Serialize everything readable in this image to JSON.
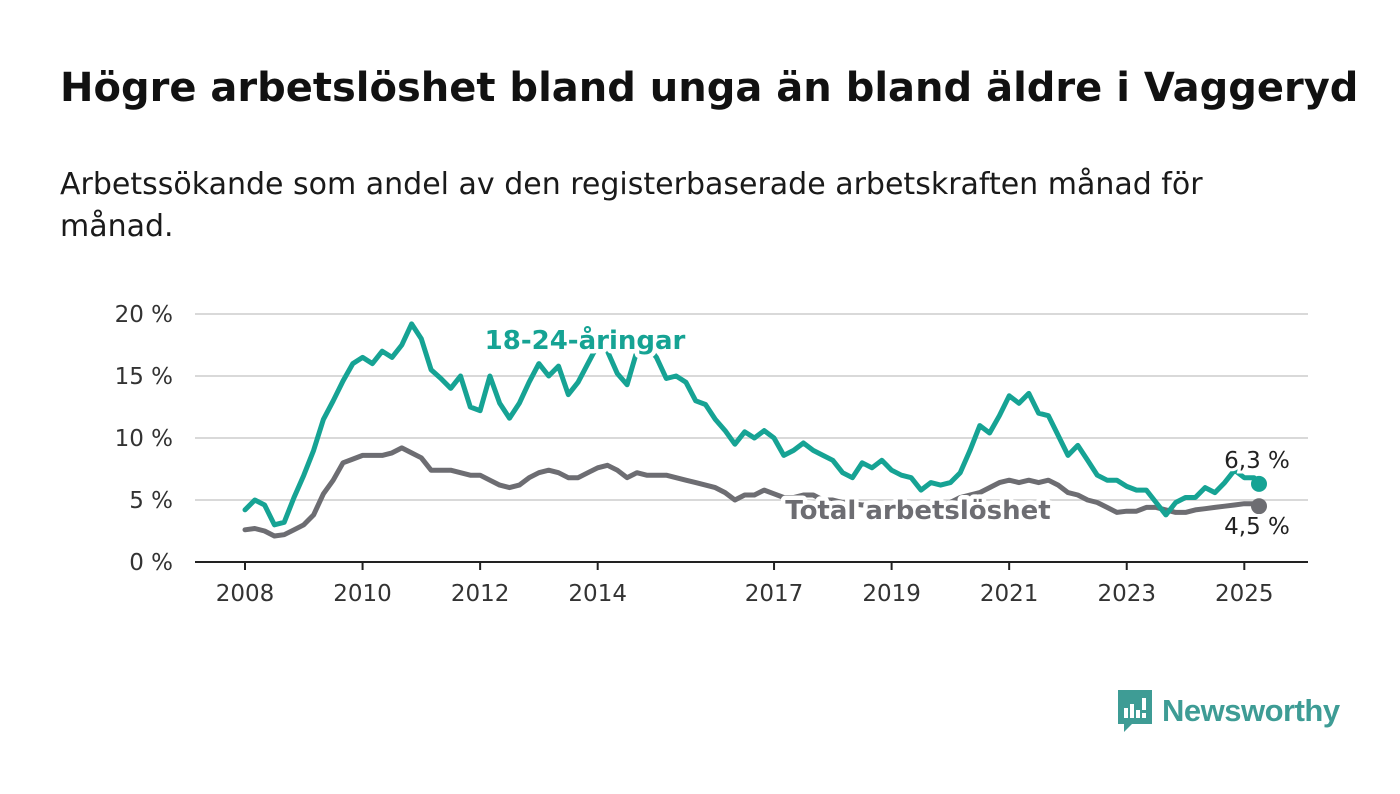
{
  "title": "Högre arbetslöshet bland unga än bland äldre i Vaggeryd",
  "subtitle": "Arbetssökande som andel av den registerbaserade arbetskraften månad för månad.",
  "brand": {
    "name": "Newsworthy",
    "color": "#3e9c95"
  },
  "colors": {
    "youth": "#16a394",
    "total": "#6d6d72",
    "grid": "#d9d9d9",
    "axis": "#222222"
  },
  "chart_data": {
    "type": "line",
    "title": "Högre arbetslöshet bland unga än bland äldre i Vaggeryd",
    "xlabel": "",
    "ylabel": "",
    "x_tick_labels": [
      "2008",
      "2010",
      "2012",
      "2014",
      "2017",
      "2019",
      "2021",
      "2023",
      "2025"
    ],
    "x_tick_years": [
      2008,
      2010,
      2012,
      2014,
      2017,
      2019,
      2021,
      2023,
      2025
    ],
    "y_tick_labels": [
      "0 %",
      "5 %",
      "10 %",
      "15 %",
      "20 %"
    ],
    "y_ticks": [
      0,
      5,
      10,
      15,
      20
    ],
    "ylim": [
      0,
      20
    ],
    "xlim": [
      "2008-01",
      "2025-04"
    ],
    "grid": true,
    "legend": "inline labels",
    "series": [
      {
        "name": "18-24-åringar",
        "key": "youth",
        "end_label": "6,3 %",
        "points": [
          [
            "2008-01",
            4.2
          ],
          [
            "2008-03",
            5.0
          ],
          [
            "2008-05",
            4.6
          ],
          [
            "2008-07",
            3.0
          ],
          [
            "2008-09",
            3.2
          ],
          [
            "2008-11",
            5.2
          ],
          [
            "2009-01",
            7.0
          ],
          [
            "2009-03",
            9.0
          ],
          [
            "2009-05",
            11.5
          ],
          [
            "2009-07",
            13.0
          ],
          [
            "2009-09",
            14.6
          ],
          [
            "2009-11",
            16.0
          ],
          [
            "2010-01",
            16.5
          ],
          [
            "2010-03",
            16.0
          ],
          [
            "2010-05",
            17.0
          ],
          [
            "2010-07",
            16.5
          ],
          [
            "2010-09",
            17.5
          ],
          [
            "2010-11",
            19.2
          ],
          [
            "2011-01",
            18.0
          ],
          [
            "2011-03",
            15.5
          ],
          [
            "2011-05",
            14.8
          ],
          [
            "2011-07",
            14.0
          ],
          [
            "2011-09",
            15.0
          ],
          [
            "2011-11",
            12.5
          ],
          [
            "2012-01",
            12.2
          ],
          [
            "2012-03",
            15.0
          ],
          [
            "2012-05",
            12.8
          ],
          [
            "2012-07",
            11.6
          ],
          [
            "2012-09",
            12.8
          ],
          [
            "2012-11",
            14.5
          ],
          [
            "2013-01",
            16.0
          ],
          [
            "2013-03",
            15.0
          ],
          [
            "2013-05",
            15.8
          ],
          [
            "2013-07",
            13.5
          ],
          [
            "2013-09",
            14.5
          ],
          [
            "2013-11",
            16.0
          ],
          [
            "2014-01",
            17.5
          ],
          [
            "2014-03",
            17.0
          ],
          [
            "2014-05",
            15.2
          ],
          [
            "2014-07",
            14.3
          ],
          [
            "2014-09",
            17.0
          ],
          [
            "2014-11",
            17.5
          ],
          [
            "2015-01",
            16.5
          ],
          [
            "2015-03",
            14.8
          ],
          [
            "2015-05",
            15.0
          ],
          [
            "2015-07",
            14.5
          ],
          [
            "2015-09",
            13.0
          ],
          [
            "2015-11",
            12.7
          ],
          [
            "2016-01",
            11.5
          ],
          [
            "2016-03",
            10.6
          ],
          [
            "2016-05",
            9.5
          ],
          [
            "2016-07",
            10.5
          ],
          [
            "2016-09",
            10.0
          ],
          [
            "2016-11",
            10.6
          ],
          [
            "2017-01",
            10.0
          ],
          [
            "2017-03",
            8.6
          ],
          [
            "2017-05",
            9.0
          ],
          [
            "2017-07",
            9.6
          ],
          [
            "2017-09",
            9.0
          ],
          [
            "2017-11",
            8.6
          ],
          [
            "2018-01",
            8.2
          ],
          [
            "2018-03",
            7.2
          ],
          [
            "2018-05",
            6.8
          ],
          [
            "2018-07",
            8.0
          ],
          [
            "2018-09",
            7.6
          ],
          [
            "2018-11",
            8.2
          ],
          [
            "2019-01",
            7.4
          ],
          [
            "2019-03",
            7.0
          ],
          [
            "2019-05",
            6.8
          ],
          [
            "2019-07",
            5.8
          ],
          [
            "2019-09",
            6.4
          ],
          [
            "2019-11",
            6.2
          ],
          [
            "2020-01",
            6.4
          ],
          [
            "2020-03",
            7.2
          ],
          [
            "2020-05",
            9.0
          ],
          [
            "2020-07",
            11.0
          ],
          [
            "2020-09",
            10.4
          ],
          [
            "2020-11",
            11.8
          ],
          [
            "2021-01",
            13.4
          ],
          [
            "2021-03",
            12.8
          ],
          [
            "2021-05",
            13.6
          ],
          [
            "2021-07",
            12.0
          ],
          [
            "2021-09",
            11.8
          ],
          [
            "2021-11",
            10.2
          ],
          [
            "2022-01",
            8.6
          ],
          [
            "2022-03",
            9.4
          ],
          [
            "2022-05",
            8.2
          ],
          [
            "2022-07",
            7.0
          ],
          [
            "2022-09",
            6.6
          ],
          [
            "2022-11",
            6.6
          ],
          [
            "2023-01",
            6.1
          ],
          [
            "2023-03",
            5.8
          ],
          [
            "2023-05",
            5.8
          ],
          [
            "2023-07",
            4.8
          ],
          [
            "2023-09",
            3.8
          ],
          [
            "2023-11",
            4.8
          ],
          [
            "2024-01",
            5.2
          ],
          [
            "2024-03",
            5.2
          ],
          [
            "2024-05",
            6.0
          ],
          [
            "2024-07",
            5.6
          ],
          [
            "2024-09",
            6.4
          ],
          [
            "2024-11",
            7.4
          ],
          [
            "2025-01",
            6.8
          ],
          [
            "2025-03",
            6.8
          ],
          [
            "2025-04",
            6.3
          ]
        ]
      },
      {
        "name": "Total arbetslöshet",
        "key": "total",
        "end_label": "4,5 %",
        "points": [
          [
            "2008-01",
            2.6
          ],
          [
            "2008-03",
            2.7
          ],
          [
            "2008-05",
            2.5
          ],
          [
            "2008-07",
            2.1
          ],
          [
            "2008-09",
            2.2
          ],
          [
            "2008-11",
            2.6
          ],
          [
            "2009-01",
            3.0
          ],
          [
            "2009-03",
            3.8
          ],
          [
            "2009-05",
            5.5
          ],
          [
            "2009-07",
            6.6
          ],
          [
            "2009-09",
            8.0
          ],
          [
            "2009-11",
            8.3
          ],
          [
            "2010-01",
            8.6
          ],
          [
            "2010-03",
            8.6
          ],
          [
            "2010-05",
            8.6
          ],
          [
            "2010-07",
            8.8
          ],
          [
            "2010-09",
            9.2
          ],
          [
            "2010-11",
            8.8
          ],
          [
            "2011-01",
            8.4
          ],
          [
            "2011-03",
            7.4
          ],
          [
            "2011-05",
            7.4
          ],
          [
            "2011-07",
            7.4
          ],
          [
            "2011-09",
            7.2
          ],
          [
            "2011-11",
            7.0
          ],
          [
            "2012-01",
            7.0
          ],
          [
            "2012-03",
            6.6
          ],
          [
            "2012-05",
            6.2
          ],
          [
            "2012-07",
            6.0
          ],
          [
            "2012-09",
            6.2
          ],
          [
            "2012-11",
            6.8
          ],
          [
            "2013-01",
            7.2
          ],
          [
            "2013-03",
            7.4
          ],
          [
            "2013-05",
            7.2
          ],
          [
            "2013-07",
            6.8
          ],
          [
            "2013-09",
            6.8
          ],
          [
            "2013-11",
            7.2
          ],
          [
            "2014-01",
            7.6
          ],
          [
            "2014-03",
            7.8
          ],
          [
            "2014-05",
            7.4
          ],
          [
            "2014-07",
            6.8
          ],
          [
            "2014-09",
            7.2
          ],
          [
            "2014-11",
            7.0
          ],
          [
            "2015-01",
            7.0
          ],
          [
            "2015-03",
            7.0
          ],
          [
            "2015-05",
            6.8
          ],
          [
            "2015-07",
            6.6
          ],
          [
            "2015-09",
            6.4
          ],
          [
            "2015-11",
            6.2
          ],
          [
            "2016-01",
            6.0
          ],
          [
            "2016-03",
            5.6
          ],
          [
            "2016-05",
            5.0
          ],
          [
            "2016-07",
            5.4
          ],
          [
            "2016-09",
            5.4
          ],
          [
            "2016-11",
            5.8
          ],
          [
            "2017-01",
            5.5
          ],
          [
            "2017-03",
            5.2
          ],
          [
            "2017-05",
            5.2
          ],
          [
            "2017-07",
            5.4
          ],
          [
            "2017-09",
            5.4
          ],
          [
            "2017-11",
            5.0
          ],
          [
            "2018-01",
            5.0
          ],
          [
            "2018-03",
            4.8
          ],
          [
            "2018-05",
            4.7
          ],
          [
            "2018-07",
            4.6
          ],
          [
            "2018-09",
            4.6
          ],
          [
            "2018-11",
            4.6
          ],
          [
            "2019-01",
            4.6
          ],
          [
            "2019-03",
            4.5
          ],
          [
            "2019-05",
            4.4
          ],
          [
            "2019-07",
            4.4
          ],
          [
            "2019-09",
            4.5
          ],
          [
            "2019-11",
            4.6
          ],
          [
            "2020-01",
            4.8
          ],
          [
            "2020-03",
            5.2
          ],
          [
            "2020-05",
            5.4
          ],
          [
            "2020-07",
            5.6
          ],
          [
            "2020-09",
            6.0
          ],
          [
            "2020-11",
            6.4
          ],
          [
            "2021-01",
            6.6
          ],
          [
            "2021-03",
            6.4
          ],
          [
            "2021-05",
            6.6
          ],
          [
            "2021-07",
            6.4
          ],
          [
            "2021-09",
            6.6
          ],
          [
            "2021-11",
            6.2
          ],
          [
            "2022-01",
            5.6
          ],
          [
            "2022-03",
            5.4
          ],
          [
            "2022-05",
            5.0
          ],
          [
            "2022-07",
            4.8
          ],
          [
            "2022-09",
            4.4
          ],
          [
            "2022-11",
            4.0
          ],
          [
            "2023-01",
            4.1
          ],
          [
            "2023-03",
            4.1
          ],
          [
            "2023-05",
            4.4
          ],
          [
            "2023-07",
            4.4
          ],
          [
            "2023-09",
            4.2
          ],
          [
            "2023-11",
            4.0
          ],
          [
            "2024-01",
            4.0
          ],
          [
            "2024-03",
            4.2
          ],
          [
            "2024-05",
            4.3
          ],
          [
            "2024-07",
            4.4
          ],
          [
            "2024-09",
            4.5
          ],
          [
            "2024-11",
            4.6
          ],
          [
            "2025-01",
            4.7
          ],
          [
            "2025-03",
            4.7
          ],
          [
            "2025-04",
            4.5
          ]
        ]
      }
    ]
  }
}
